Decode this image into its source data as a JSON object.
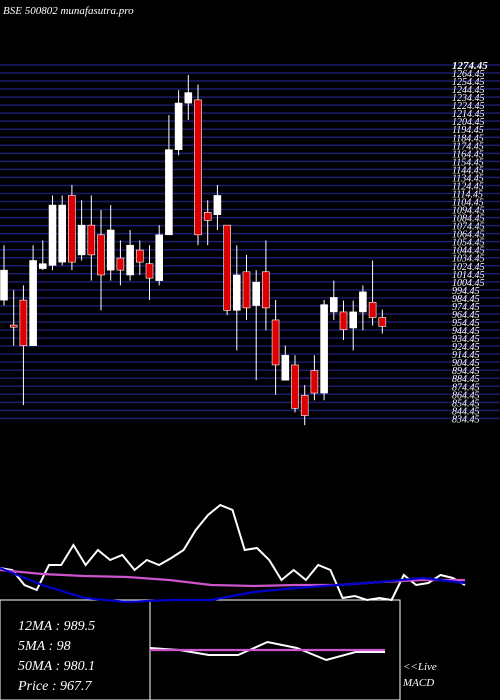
{
  "chart_data": {
    "type": "candlestick",
    "title": "BSE 500802 munafasutra.pro",
    "up_color": "#ffffff",
    "down_color": "#dd0000",
    "grid_color": "#1c1c70",
    "ylim": [
      820,
      1280
    ],
    "yticks": [
      1274.45,
      1264.45,
      1254.45,
      1244.45,
      1234.45,
      1224.45,
      1214.45,
      1204.45,
      1194.45,
      1184.45,
      1174.45,
      1164.45,
      1154.45,
      1144.45,
      1134.45,
      1124.45,
      1114.45,
      1104.45,
      1094.45,
      1084.45,
      1074.45,
      1064.45,
      1054.45,
      1044.45,
      1034.45,
      1024.45,
      1014.45,
      1004.45,
      994.45,
      984.45,
      974.45,
      964.45,
      954.45,
      944.45,
      934.45,
      924.45,
      914.45,
      904.45,
      894.45,
      884.45,
      874.45,
      864.45,
      854.45,
      844.45,
      834.45
    ],
    "open": [
      981.7,
      950.6,
      981.7,
      925,
      1021,
      1025,
      1029,
      1112,
      1038,
      1075,
      1063,
      1019,
      1034,
      1013,
      1044,
      1027,
      1006,
      1063,
      1169,
      1227,
      1231,
      1091,
      1088,
      1075,
      969,
      1017,
      975,
      1017,
      957,
      882,
      901,
      863,
      894,
      866,
      967,
      967,
      947,
      967,
      979,
      960
    ],
    "high": [
      1050,
      994,
      1000,
      1050,
      1056,
      1112,
      1112,
      1125,
      1106,
      1112,
      1094,
      1100,
      1056,
      1069,
      1056,
      1050,
      1075,
      1212,
      1243,
      1262,
      1250,
      1106,
      1125,
      1075,
      1050,
      1038,
      1019,
      1056,
      982,
      925,
      913,
      876,
      913,
      982,
      1006,
      981,
      981,
      1000,
      1031,
      970
    ],
    "low": [
      975,
      925,
      851,
      925,
      1019,
      1019,
      1025,
      1019,
      1031,
      1006,
      969,
      1006,
      1000,
      1006,
      1013,
      981.7,
      1000,
      1063,
      1162,
      1206,
      1050,
      1050,
      1069,
      963,
      919,
      957,
      882,
      944,
      864,
      882,
      842,
      826,
      857,
      857,
      957,
      932,
      919,
      944,
      950,
      940
    ],
    "close": [
      1019,
      948,
      925,
      1031,
      1027,
      1100,
      1100,
      1029,
      1075,
      1038,
      1013,
      1069,
      1019,
      1050,
      1029,
      1009,
      1063,
      1169,
      1227,
      1240,
      1063,
      1081,
      1112,
      969,
      1013,
      972,
      1004,
      972,
      901,
      913,
      847,
      838,
      866,
      976,
      985,
      945,
      967,
      992,
      960,
      949
    ],
    "macd": {
      "ylim": [
        -20,
        90
      ],
      "series": [
        {
          "name": "macd",
          "color": "#ffffff",
          "values": [
            22,
            20,
            5,
            0,
            25,
            25,
            45,
            25,
            40,
            30,
            35,
            20,
            30,
            25,
            32,
            40,
            60,
            75,
            85,
            80,
            40,
            42,
            30,
            10,
            20,
            10,
            25,
            20,
            -8,
            -6,
            -10,
            -8,
            -10,
            15,
            5,
            7,
            15,
            12,
            5
          ]
        },
        {
          "name": "signal",
          "color": "#cc55cc",
          "values": [
            20,
            16,
            14,
            13,
            10,
            5,
            4,
            5,
            5,
            8,
            10,
            10
          ]
        },
        {
          "name": "ma",
          "color": "#0000cc",
          "values": [
            22,
            5,
            -8,
            -12,
            -10,
            -10,
            -2,
            2,
            5,
            8,
            12,
            7
          ]
        }
      ]
    },
    "live_macd": {
      "ylim": [
        -50,
        50
      ],
      "series": [
        {
          "name": "macd",
          "color": "#ffffff",
          "values": [
            2,
            0,
            -5,
            -5,
            8,
            2,
            -10,
            -2,
            -2
          ]
        },
        {
          "name": "signal",
          "color": "#cc55cc",
          "values": [
            0,
            0
          ]
        }
      ]
    },
    "indicators": [
      "12MA : 989.5",
      "5MA : 98",
      "50MA : 980.1",
      "Price  : 967.7"
    ],
    "live_label": "<<Live",
    "live_sub": "MACD"
  }
}
